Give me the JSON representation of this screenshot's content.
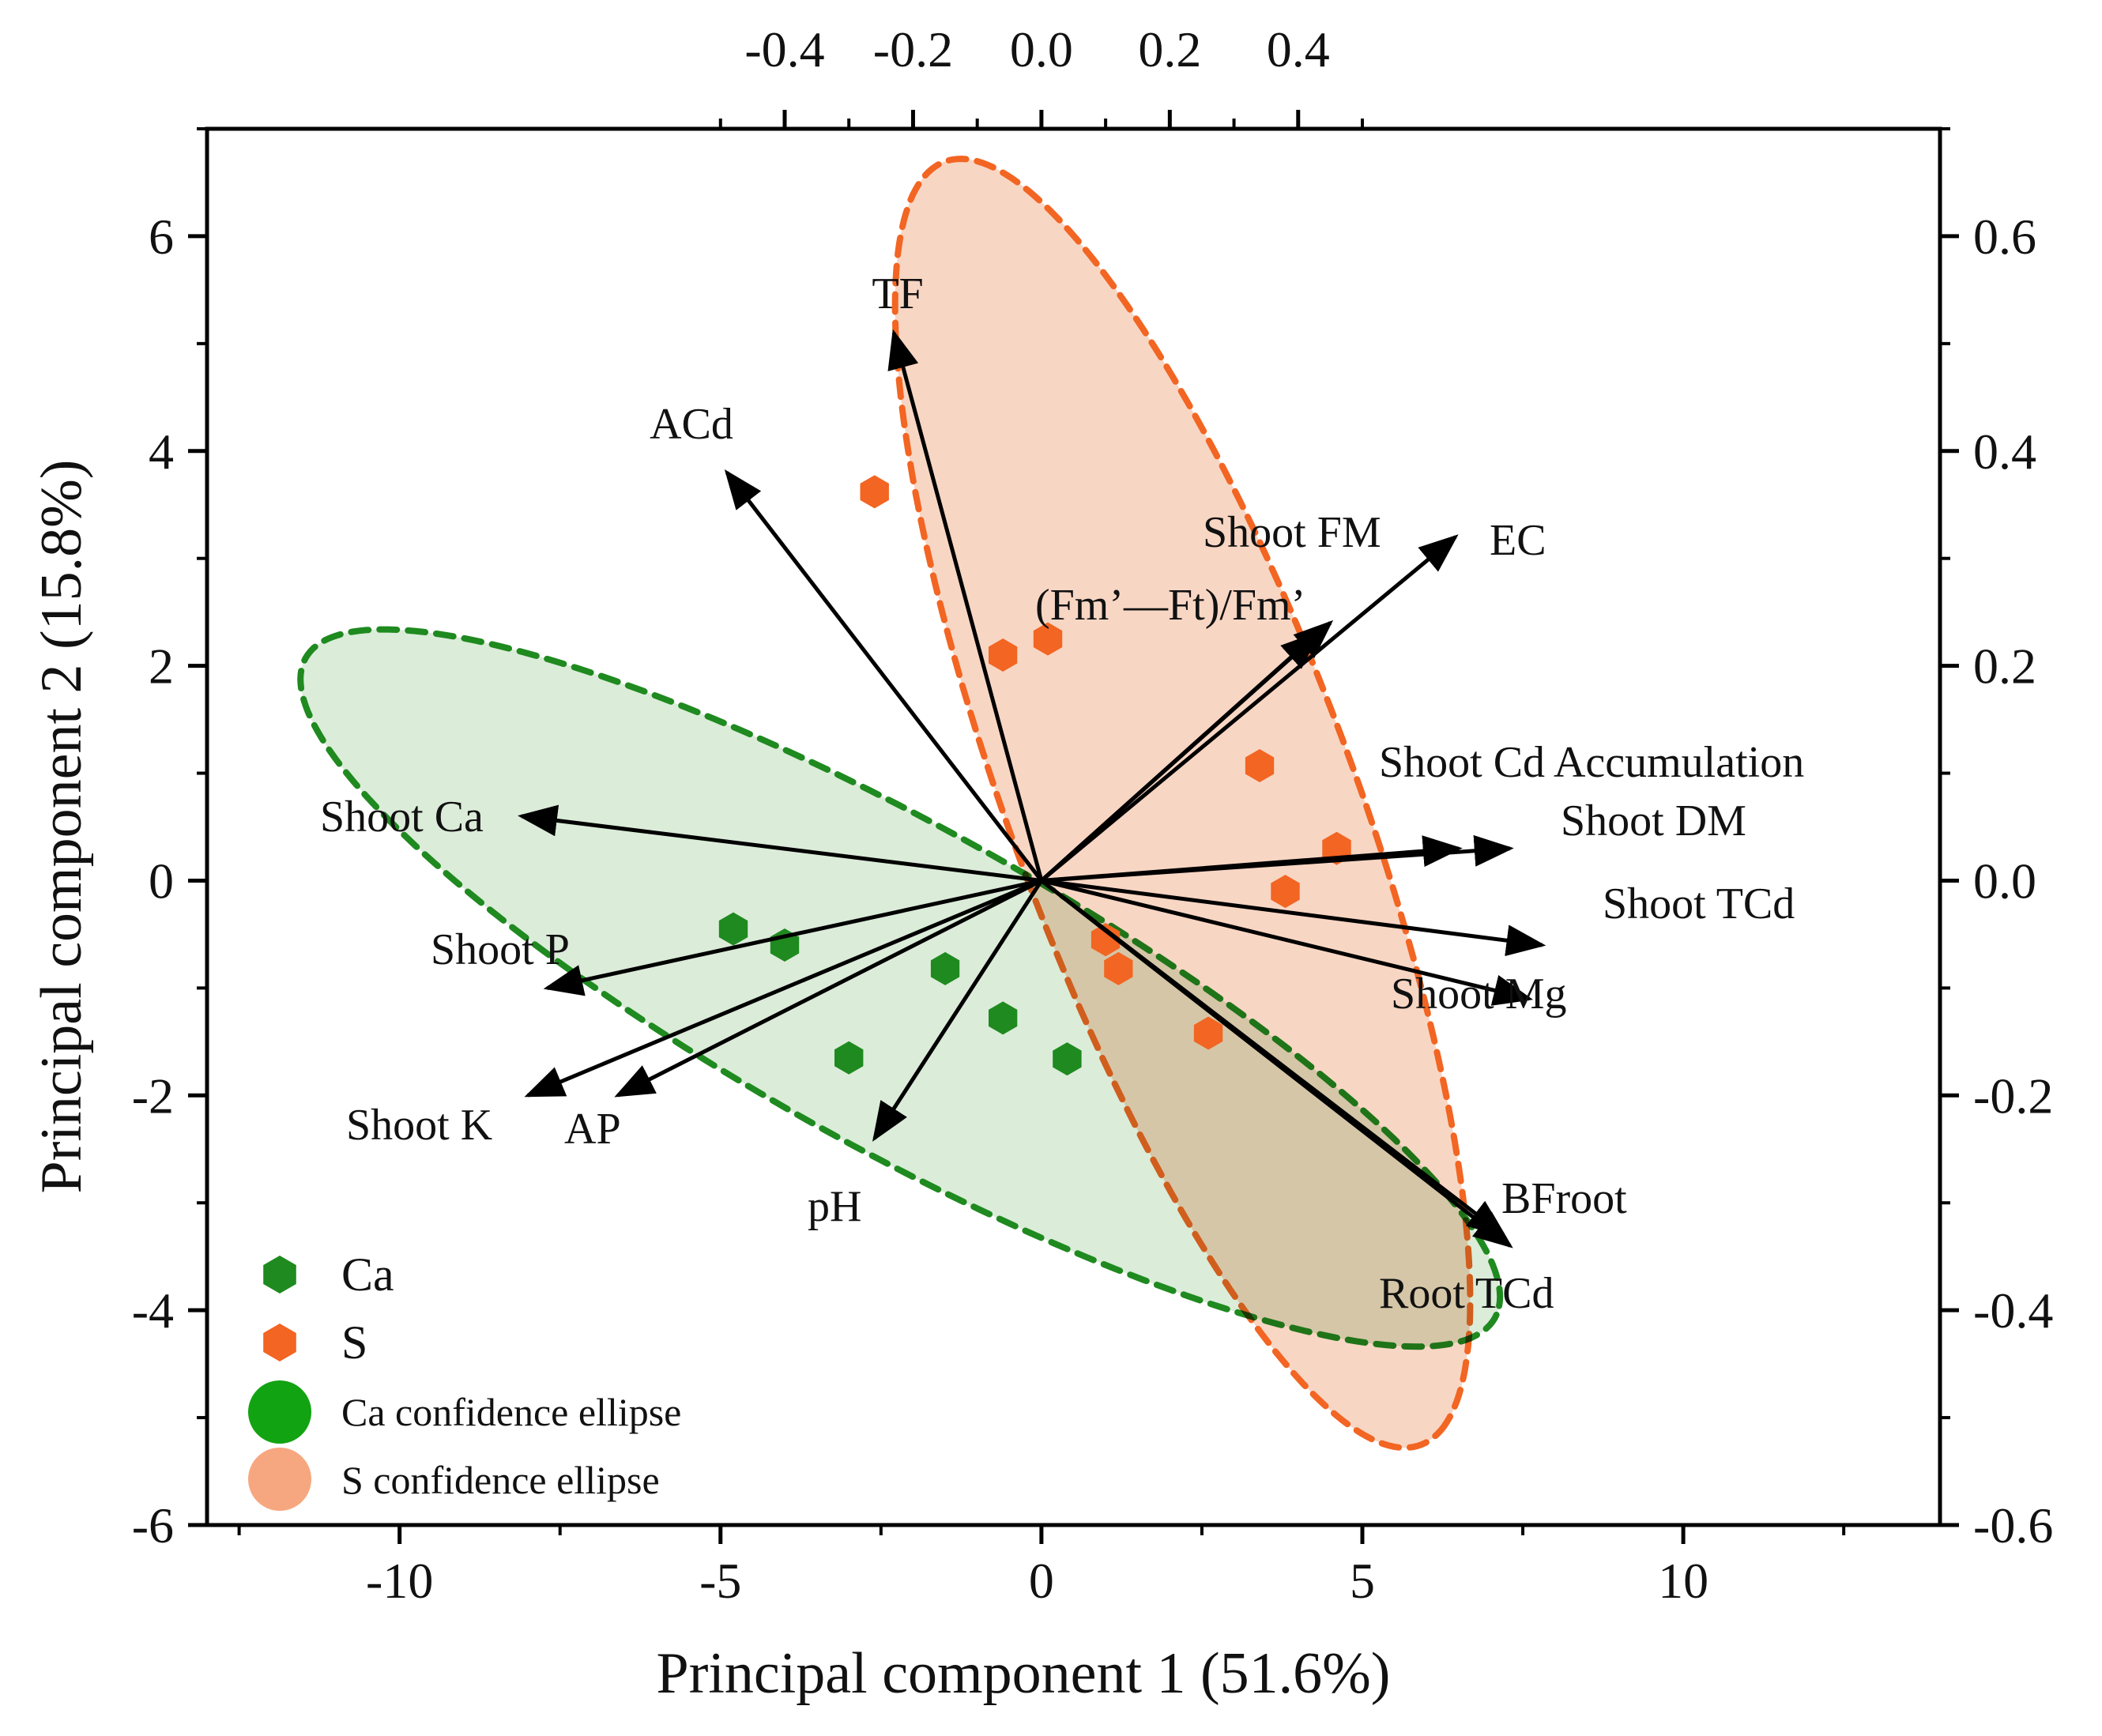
{
  "chart_data": {
    "type": "scatter",
    "subtype": "pca-biplot",
    "title": "",
    "xlabel": "Principal component 1 (51.6%)",
    "ylabel": "Principal component 2 (15.8%)",
    "xlim": [
      -13,
      14
    ],
    "ylim": [
      -6,
      7
    ],
    "x_ticks": [
      -10,
      -5,
      0,
      5,
      10
    ],
    "x_tick_labels": [
      "-10",
      "-5",
      "0",
      "5",
      "10"
    ],
    "y_ticks": [
      -6,
      -4,
      -2,
      0,
      2,
      4,
      6
    ],
    "y_tick_labels": [
      "-6",
      "-4",
      "-2",
      "0",
      "2",
      "4",
      "6"
    ],
    "loading_scale": 10,
    "top_ticks": [
      -0.4,
      -0.2,
      0.0,
      0.2,
      0.4
    ],
    "top_tick_labels": [
      "-0.4",
      "-0.2",
      "0.0",
      "0.2",
      "0.4"
    ],
    "right_ticks": [
      0.6,
      0.4,
      0.2,
      0.0,
      -0.2,
      -0.4,
      -0.6
    ],
    "right_tick_labels": [
      "0.6",
      "0.4",
      "0.2",
      "0.0",
      "-0.2",
      "-0.4",
      "-0.6"
    ],
    "grid": false,
    "colors": {
      "ca": "#1f8a1f",
      "s": "#f26522",
      "ca_fill": "#cfe6cc",
      "s_fill": "#f8d6c4",
      "ca_legend": "#12a312",
      "s_legend": "#f7a77f",
      "arrow": "#000000"
    },
    "series": [
      {
        "name": "Ca",
        "marker": "hexagon",
        "points": [
          [
            -4.8,
            -0.45
          ],
          [
            -4.0,
            -0.6
          ],
          [
            -1.5,
            -0.82
          ],
          [
            -0.6,
            -1.28
          ],
          [
            -3.0,
            -1.65
          ],
          [
            0.4,
            -1.66
          ]
        ]
      },
      {
        "name": "S",
        "marker": "hexagon",
        "points": [
          [
            -2.6,
            3.62
          ],
          [
            -0.6,
            2.1
          ],
          [
            0.1,
            2.25
          ],
          [
            3.4,
            1.07
          ],
          [
            4.6,
            0.3
          ],
          [
            3.8,
            -0.1
          ],
          [
            1.0,
            -0.55
          ],
          [
            1.2,
            -0.82
          ],
          [
            2.6,
            -1.42
          ]
        ]
      }
    ],
    "ellipses": [
      {
        "name": "Ca confidence ellipse",
        "group": "Ca",
        "center": [
          -2.2,
          -1.0
        ],
        "semi_axes": [
          9.79,
          1.62
        ],
        "angle_deg": -17.6
      },
      {
        "name": "S confidence ellipse",
        "group": "S",
        "center": [
          2.2,
          0.72
        ],
        "semi_axes": [
          7.09,
          2.41
        ],
        "angle_deg": -55.5
      }
    ],
    "loadings": [
      {
        "name": "TF",
        "x": -0.23,
        "y": 0.51
      },
      {
        "name": "ACd",
        "x": -0.49,
        "y": 0.38
      },
      {
        "name": "Shoot FM",
        "x": 0.43,
        "y": 0.23
      },
      {
        "name": "EC",
        "x": 0.645,
        "y": 0.32
      },
      {
        "name": "(Fm’—Ft)/Fm’",
        "x": 0.45,
        "y": 0.24
      },
      {
        "name": "Shoot Cd Accumulation",
        "x": 0.65,
        "y": 0.03
      },
      {
        "name": "Shoot DM",
        "x": 0.73,
        "y": 0.03
      },
      {
        "name": "Shoot TCd",
        "x": 0.76,
        "y": -0.11
      },
      {
        "name": "Shoot Mg",
        "x": 0.78,
        "y": -0.06
      },
      {
        "name": "BFroot",
        "x": 0.73,
        "y": -0.34
      },
      {
        "name": "Root TCd",
        "x": 0.72,
        "y": -0.33
      },
      {
        "name": "Shoot Ca",
        "x": -0.81,
        "y": 0.06
      },
      {
        "name": "Shoot P",
        "x": -0.77,
        "y": -0.1
      },
      {
        "name": "Shoot K",
        "x": -0.8,
        "y": -0.2
      },
      {
        "name": "AP",
        "x": -0.66,
        "y": -0.2
      },
      {
        "name": "pH",
        "x": -0.26,
        "y": -0.24
      }
    ],
    "legend": {
      "position": "bottom-left",
      "entries": [
        "Ca",
        "S",
        "Ca confidence ellipse",
        "S confidence ellipse"
      ]
    }
  }
}
